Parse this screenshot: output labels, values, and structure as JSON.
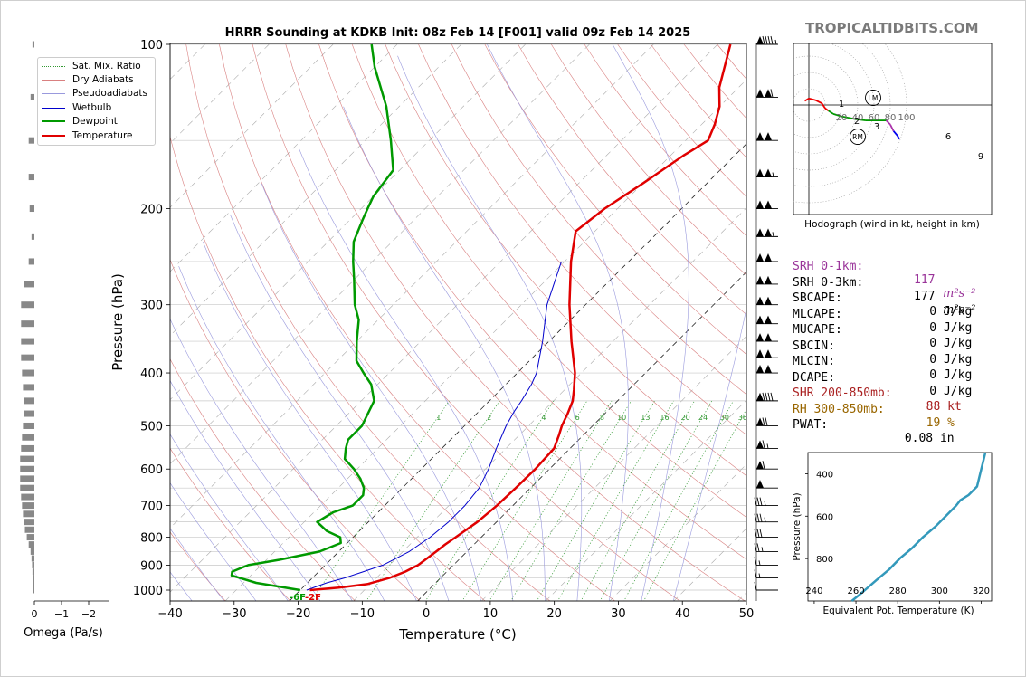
{
  "header": {
    "title": "HRRR Sounding at KDKB Init: 08z Feb 14 [F001] valid 09z Feb 14 2025",
    "brand": "TROPICALTIDBITS.COM"
  },
  "chart_data": [
    {
      "type": "line",
      "name": "skew-t",
      "xlabel": "Temperature (°C)",
      "ylabel": "Pressure (hPa)",
      "xlim": [
        -40,
        50
      ],
      "ylim": [
        1050,
        100
      ],
      "y_scale": "log",
      "skew": "isotherms slanted 45° up-right",
      "x_ticks": [
        "−40",
        "−30",
        "−20",
        "−10",
        "0",
        "10",
        "20",
        "30",
        "40",
        "50"
      ],
      "y_ticks": [
        "100",
        "200",
        "300",
        "400",
        "500",
        "600",
        "700",
        "800",
        "900",
        "1000"
      ],
      "mixing_ratio_labels": [
        "1",
        "2",
        "4",
        "6",
        "8",
        "10",
        "13",
        "16",
        "20",
        "24",
        "30",
        "36"
      ],
      "surface_label": "-6F",
      "surface_label2": "-2F",
      "colors": {
        "temperature": "#e00000",
        "dewpoint": "#009900",
        "wetbulb": "#0000cc",
        "dry_adiabat": "#d98080",
        "moist_adiabat": "#9999dd",
        "mixing_ratio": "#339933"
      },
      "series": [
        {
          "name": "Temperature",
          "points": [
            [
              1000,
              -18.5
            ],
            [
              990,
              -14.5
            ],
            [
              975,
              -10.5
            ],
            [
              950,
              -8
            ],
            [
              925,
              -6.5
            ],
            [
              900,
              -5.5
            ],
            [
              850,
              -4.8
            ],
            [
              825,
              -4.5
            ],
            [
              800,
              -4
            ],
            [
              750,
              -3
            ],
            [
              700,
              -2.5
            ],
            [
              650,
              -2.3
            ],
            [
              600,
              -2.2
            ],
            [
              550,
              -2.5
            ],
            [
              520,
              -3.8
            ],
            [
              500,
              -4.8
            ],
            [
              475,
              -5.8
            ],
            [
              450,
              -7
            ],
            [
              430,
              -8.5
            ],
            [
              400,
              -11
            ],
            [
              350,
              -16.5
            ],
            [
              300,
              -22.5
            ],
            [
              250,
              -29
            ],
            [
              220,
              -33
            ],
            [
              200,
              -32
            ],
            [
              180,
              -30
            ],
            [
              160,
              -28
            ],
            [
              150,
              -26.5
            ],
            [
              140,
              -28
            ],
            [
              130,
              -30
            ],
            [
              120,
              -33
            ],
            [
              100,
              -38
            ]
          ]
        },
        {
          "name": "Dewpoint",
          "points": [
            [
              1000,
              -20
            ],
            [
              970,
              -28
            ],
            [
              940,
              -33
            ],
            [
              925,
              -33.5
            ],
            [
              900,
              -32
            ],
            [
              880,
              -28
            ],
            [
              850,
              -23
            ],
            [
              820,
              -21
            ],
            [
              800,
              -22
            ],
            [
              780,
              -25
            ],
            [
              750,
              -28
            ],
            [
              720,
              -27
            ],
            [
              700,
              -25
            ],
            [
              670,
              -25
            ],
            [
              650,
              -26
            ],
            [
              625,
              -28
            ],
            [
              600,
              -30.5
            ],
            [
              575,
              -33.5
            ],
            [
              550,
              -35
            ],
            [
              530,
              -36
            ],
            [
              500,
              -36
            ],
            [
              450,
              -38
            ],
            [
              420,
              -41
            ],
            [
              400,
              -44
            ],
            [
              380,
              -47
            ],
            [
              350,
              -50
            ],
            [
              320,
              -53
            ],
            [
              300,
              -56
            ],
            [
              270,
              -60
            ],
            [
              250,
              -63
            ],
            [
              230,
              -66
            ],
            [
              210,
              -68
            ],
            [
              200,
              -69
            ],
            [
              190,
              -70
            ],
            [
              170,
              -71
            ],
            [
              150,
              -76
            ],
            [
              130,
              -82
            ],
            [
              110,
              -90
            ],
            [
              100,
              -94
            ]
          ]
        },
        {
          "name": "Wetbulb",
          "points": [
            [
              1000,
              -19
            ],
            [
              970,
              -17
            ],
            [
              950,
              -15
            ],
            [
              925,
              -13
            ],
            [
              900,
              -11
            ],
            [
              850,
              -9
            ],
            [
              800,
              -8
            ],
            [
              750,
              -7.5
            ],
            [
              700,
              -7.5
            ],
            [
              650,
              -8
            ],
            [
              600,
              -9.5
            ],
            [
              550,
              -11.5
            ],
            [
              500,
              -13.5
            ],
            [
              470,
              -14.5
            ],
            [
              450,
              -15
            ],
            [
              420,
              -16
            ],
            [
              400,
              -17
            ],
            [
              350,
              -21
            ],
            [
              300,
              -26
            ],
            [
              250,
              -30.5
            ]
          ]
        },
        {
          "name": "Omega",
          "xlabel": "Omega (Pa/s)",
          "x_ticks": [
            "0",
            "−1",
            "−2"
          ],
          "values": [
            [
              1000,
              0
            ],
            [
              975,
              0.02
            ],
            [
              950,
              0.05
            ],
            [
              925,
              0.1
            ],
            [
              900,
              0.12
            ],
            [
              875,
              0.15
            ],
            [
              850,
              0.2
            ],
            [
              825,
              0.3
            ],
            [
              800,
              0.4
            ],
            [
              775,
              0.5
            ],
            [
              750,
              0.55
            ],
            [
              725,
              0.6
            ],
            [
              700,
              0.65
            ],
            [
              675,
              0.7
            ],
            [
              650,
              0.75
            ],
            [
              625,
              0.75
            ],
            [
              600,
              0.75
            ],
            [
              575,
              0.75
            ],
            [
              550,
              0.7
            ],
            [
              525,
              0.65
            ],
            [
              500,
              0.6
            ],
            [
              475,
              0.55
            ],
            [
              450,
              0.55
            ],
            [
              425,
              0.6
            ],
            [
              400,
              0.65
            ],
            [
              375,
              0.7
            ],
            [
              350,
              0.7
            ],
            [
              325,
              0.7
            ],
            [
              300,
              0.7
            ],
            [
              275,
              0.55
            ],
            [
              250,
              0.3
            ],
            [
              225,
              0.15
            ],
            [
              200,
              0.25
            ],
            [
              175,
              0.3
            ],
            [
              150,
              0.3
            ],
            [
              125,
              0.2
            ],
            [
              100,
              0.1
            ]
          ]
        }
      ],
      "wind_barbs": [
        {
          "p": 100,
          "spd": 95
        },
        {
          "p": 125,
          "spd": 110
        },
        {
          "p": 150,
          "spd": 100
        },
        {
          "p": 175,
          "spd": 105
        },
        {
          "p": 200,
          "spd": 100
        },
        {
          "p": 225,
          "spd": 105
        },
        {
          "p": 250,
          "spd": 100
        },
        {
          "p": 275,
          "spd": 100
        },
        {
          "p": 300,
          "spd": 100
        },
        {
          "p": 325,
          "spd": 100
        },
        {
          "p": 350,
          "spd": 100
        },
        {
          "p": 375,
          "spd": 100
        },
        {
          "p": 400,
          "spd": 100
        },
        {
          "p": 450,
          "spd": 90
        },
        {
          "p": 500,
          "spd": 70
        },
        {
          "p": 550,
          "spd": 65
        },
        {
          "p": 600,
          "spd": 60
        },
        {
          "p": 650,
          "spd": 50
        },
        {
          "p": 700,
          "spd": 35
        },
        {
          "p": 750,
          "spd": 35
        },
        {
          "p": 800,
          "spd": 30
        },
        {
          "p": 850,
          "spd": 25
        },
        {
          "p": 900,
          "spd": 15
        },
        {
          "p": 950,
          "spd": 15
        },
        {
          "p": 1000,
          "spd": 10
        }
      ]
    },
    {
      "type": "line",
      "name": "hodograph",
      "caption": "Hodograph (wind in kt, height in km)",
      "ring_labels": [
        "20",
        "40",
        "60",
        "80",
        "100"
      ],
      "markers": [
        "LM",
        "RM"
      ],
      "height_labels": [
        "1",
        "2",
        "3",
        "6",
        "9"
      ],
      "points": [
        [
          -5,
          -5
        ],
        [
          0,
          -8
        ],
        [
          8,
          -6
        ],
        [
          16,
          -2
        ],
        [
          20,
          4
        ],
        [
          24,
          7
        ],
        [
          30,
          11
        ],
        [
          40,
          14
        ],
        [
          55,
          17
        ],
        [
          70,
          19
        ],
        [
          85,
          19
        ],
        [
          95,
          19
        ],
        [
          100,
          24
        ],
        [
          104,
          32
        ],
        [
          109,
          38
        ],
        [
          111,
          42
        ]
      ]
    },
    {
      "type": "line",
      "name": "theta-e profile",
      "xlabel": "Equivalent Pot. Temperature (K)",
      "ylabel": "Pressure (hPa)",
      "x_ticks": [
        "240",
        "260",
        "280",
        "300",
        "320"
      ],
      "y_ticks": [
        "400",
        "600",
        "800"
      ],
      "xlim": [
        237,
        325
      ],
      "ylim": [
        1000,
        300
      ],
      "points": [
        [
          1000,
          258
        ],
        [
          960,
          263
        ],
        [
          900,
          270
        ],
        [
          850,
          276
        ],
        [
          800,
          281
        ],
        [
          750,
          287
        ],
        [
          700,
          292
        ],
        [
          650,
          298
        ],
        [
          600,
          303
        ],
        [
          550,
          308
        ],
        [
          525,
          310
        ],
        [
          500,
          314
        ],
        [
          460,
          318
        ],
        [
          420,
          319
        ],
        [
          380,
          320
        ],
        [
          340,
          321
        ],
        [
          300,
          322
        ]
      ]
    }
  ],
  "legend": {
    "items": [
      {
        "label": "Sat. Mix. Ratio",
        "color": "#339933",
        "style": "dotted"
      },
      {
        "label": "Dry Adiabats",
        "color": "#d98080",
        "style": "solid"
      },
      {
        "label": "Pseudoadiabats",
        "color": "#9999dd",
        "style": "solid"
      },
      {
        "label": "Wetbulb",
        "color": "#0000cc",
        "style": "solid"
      },
      {
        "label": "Dewpoint",
        "color": "#009900",
        "style": "solid"
      },
      {
        "label": "Temperature",
        "color": "#e00000",
        "style": "solid"
      }
    ]
  },
  "indices": {
    "rows": [
      {
        "label": "SRH 0-1km:",
        "value": "117",
        "unit": "m²s⁻²",
        "color": "#993399"
      },
      {
        "label": "SRH 0-3km:",
        "value": "177",
        "unit": "m²s⁻²",
        "color": "#000000"
      },
      {
        "label": "SBCAPE:",
        "value": "    0 J/kg",
        "color": "#000000"
      },
      {
        "label": "MLCAPE:",
        "value": "    0 J/kg",
        "color": "#000000"
      },
      {
        "label": "MUCAPE:",
        "value": "    0 J/kg",
        "color": "#000000"
      },
      {
        "label": "SBCIN:",
        "value": "    0 J/kg",
        "color": "#000000"
      },
      {
        "label": "MLCIN:",
        "value": "    0 J/kg",
        "color": "#000000"
      },
      {
        "label": "DCAPE:",
        "value": "    0 J/kg",
        "color": "#000000"
      },
      {
        "label": "SHR 200-850mb:",
        "value": "  88 kt",
        "color": "#aa2222"
      },
      {
        "label": "RH 300-850mb:",
        "value": "  19 %",
        "color": "#996600"
      },
      {
        "label": "PWAT:",
        "value": " 0.08 in",
        "color": "#000000"
      }
    ]
  }
}
